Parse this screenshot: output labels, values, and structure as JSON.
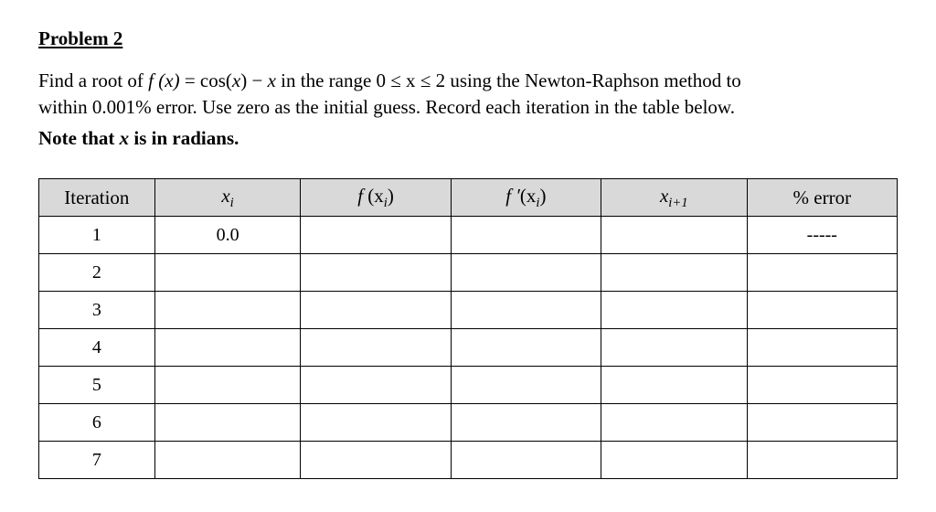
{
  "heading": "Problem 2",
  "prompt": {
    "lead": "Find a root of ",
    "fn_lhs": "f ",
    "fn_arg": "(x)",
    "eq": " = cos(",
    "x1": "x",
    "after_cos": ") − ",
    "x2": "x",
    "range_lead": " in the range ",
    "range": "0 ≤ x ≤ 2",
    "range_tail": " using the Newton-Raphson method to",
    "line2": "within 0.001% error. Use zero as the initial guess. Record each iteration in the table below."
  },
  "note": {
    "pre": "Note that ",
    "x": "x",
    "post": " is in radians."
  },
  "table": {
    "columns": {
      "iteration": "Iteration",
      "xi_sym": "x",
      "xi_sub": "i",
      "fxi_f": "f ",
      "fxi_arg": "(x",
      "fxi_sub": "i",
      "fxi_close": ")",
      "fpx_f": "f ′",
      "fpx_arg": "(x",
      "fpx_sub": "i",
      "fpx_close": ")",
      "xip1_sym": "x",
      "xip1_sub": "i+1",
      "err": "% error"
    },
    "col_widths_pct": [
      13.5,
      17,
      17.5,
      17.5,
      17,
      17.5
    ],
    "header_bg": "#d9d9d9",
    "border_color": "#000000",
    "rows": [
      {
        "iteration": "1",
        "xi": "0.0",
        "fxi": "",
        "fpxi": "",
        "xip1": "",
        "err": "-----"
      },
      {
        "iteration": "2",
        "xi": "",
        "fxi": "",
        "fpxi": "",
        "xip1": "",
        "err": ""
      },
      {
        "iteration": "3",
        "xi": "",
        "fxi": "",
        "fpxi": "",
        "xip1": "",
        "err": ""
      },
      {
        "iteration": "4",
        "xi": "",
        "fxi": "",
        "fpxi": "",
        "xip1": "",
        "err": ""
      },
      {
        "iteration": "5",
        "xi": "",
        "fxi": "",
        "fpxi": "",
        "xip1": "",
        "err": ""
      },
      {
        "iteration": "6",
        "xi": "",
        "fxi": "",
        "fpxi": "",
        "xip1": "",
        "err": ""
      },
      {
        "iteration": "7",
        "xi": "",
        "fxi": "",
        "fpxi": "",
        "xip1": "",
        "err": ""
      }
    ]
  }
}
